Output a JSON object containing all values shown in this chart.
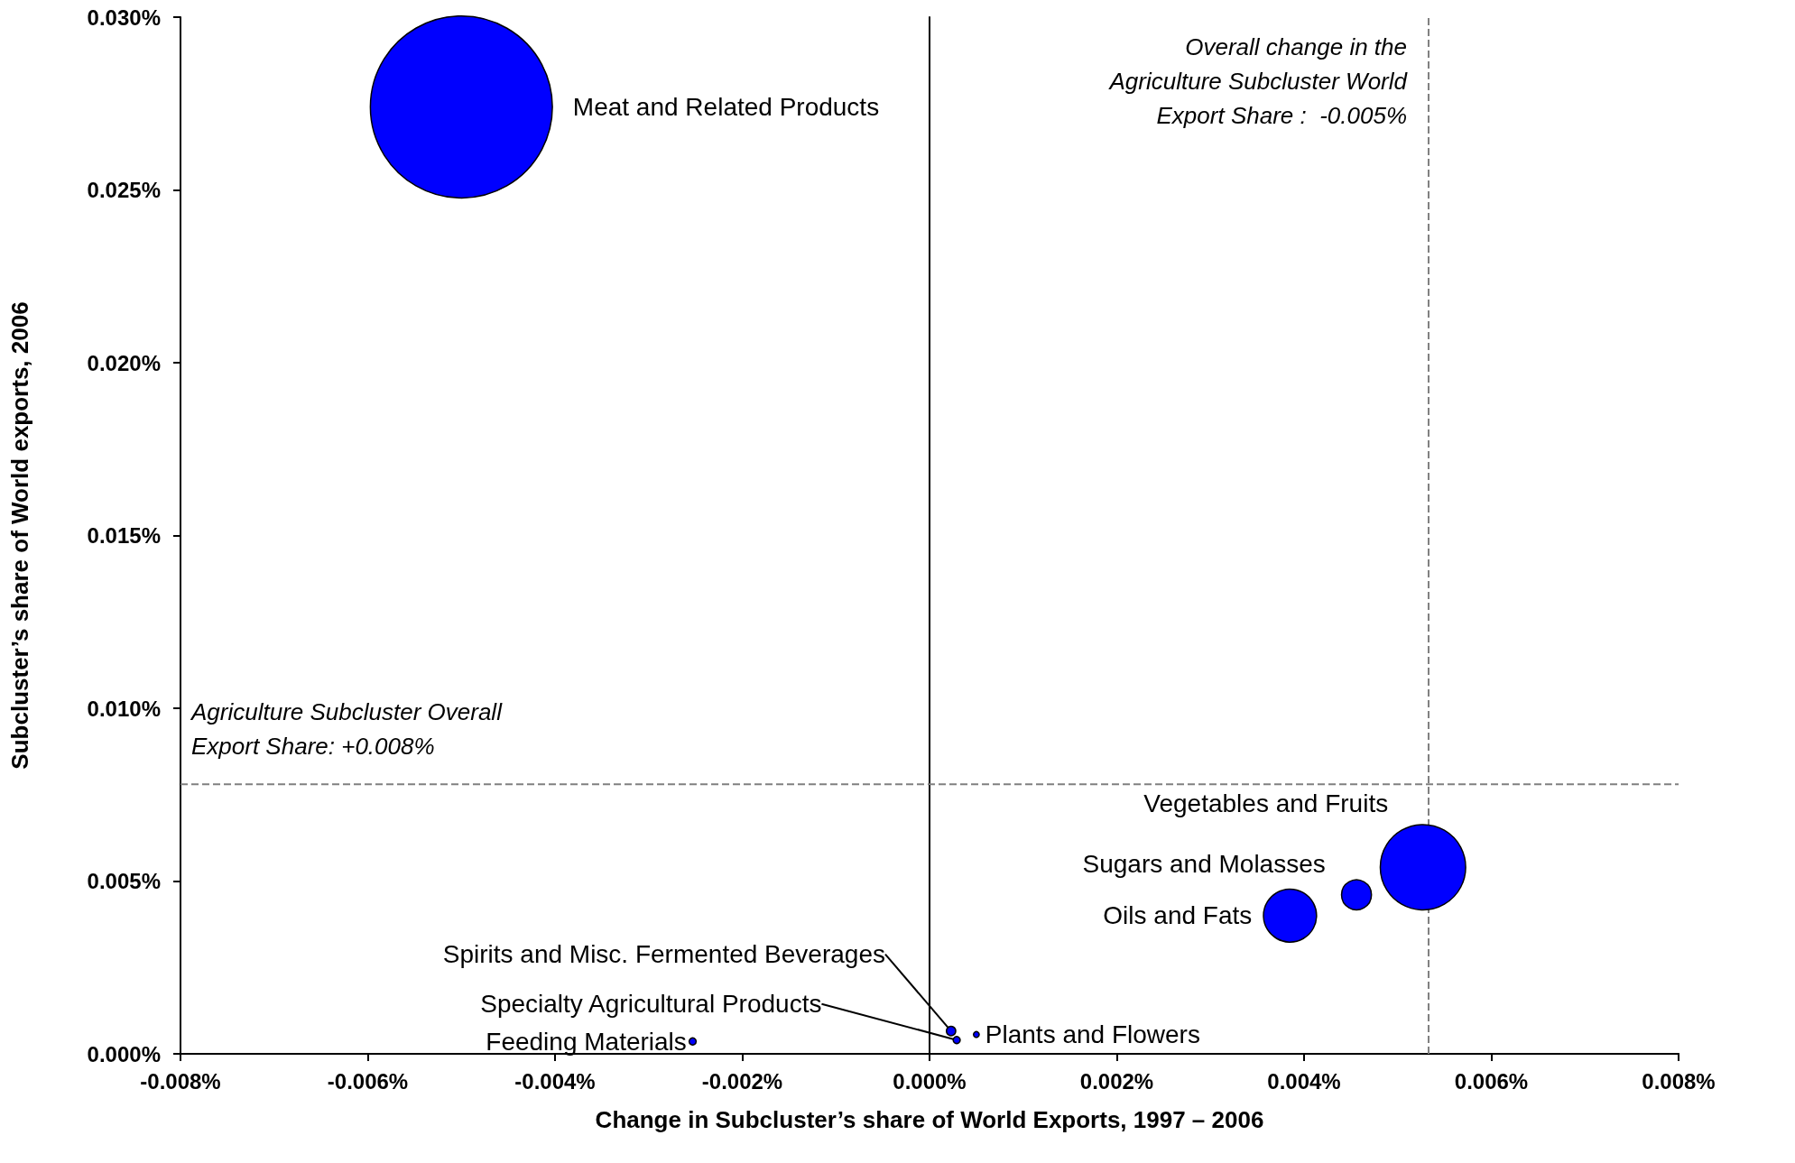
{
  "chart_data": {
    "type": "bubble",
    "xlabel": "Change in Subcluster’s share of World Exports, 1997 – 2006",
    "ylabel": "Subcluster’s share of World exports, 2006",
    "xlim": [
      -0.008,
      0.008
    ],
    "xticks": [
      {
        "value": -0.008,
        "label": "-0.008%"
      },
      {
        "value": -0.006,
        "label": "-0.006%"
      },
      {
        "value": -0.004,
        "label": "-0.004%"
      },
      {
        "value": -0.002,
        "label": "-0.002%"
      },
      {
        "value": 0,
        "label": "0.000%"
      },
      {
        "value": 0.002,
        "label": "0.002%"
      },
      {
        "value": 0.004,
        "label": "0.004%"
      },
      {
        "value": 0.006,
        "label": "0.006%"
      },
      {
        "value": 0.008,
        "label": "0.008%"
      }
    ],
    "ylim": [
      0,
      0.03
    ],
    "yticks": [
      {
        "value": 0,
        "label": "0.000%"
      },
      {
        "value": 0.005,
        "label": "0.005%"
      },
      {
        "value": 0.01,
        "label": "0.010%"
      },
      {
        "value": 0.015,
        "label": "0.015%"
      },
      {
        "value": 0.02,
        "label": "0.020%"
      },
      {
        "value": 0.025,
        "label": "0.025%"
      },
      {
        "value": 0.03,
        "label": "0.030%"
      }
    ],
    "grid": false,
    "legend": false,
    "series": [
      {
        "name": "Meat and Related Products",
        "color": "#0000ff",
        "x": [
          -0.005
        ],
        "values": [
          0.0274
        ],
        "sizes": [
          1
        ]
      },
      {
        "name": "Vegetables and Fruits",
        "color": "#0000ff",
        "x": [
          0.00527
        ],
        "values": [
          0.0054
        ],
        "sizes": [
          0.22
        ]
      },
      {
        "name": "Sugars and Molasses",
        "color": "#0000ff",
        "x": [
          0.00456
        ],
        "values": [
          0.0046
        ],
        "sizes": [
          0.027
        ]
      },
      {
        "name": "Oils and Fats",
        "color": "#0000ff",
        "x": [
          0.00385
        ],
        "values": [
          0.004
        ],
        "sizes": [
          0.085
        ]
      },
      {
        "name": "Spirits and Misc. Fermented Beverages",
        "color": "#0000ff",
        "x": [
          0.00023
        ],
        "values": [
          0.00066
        ],
        "sizes": [
          0.0026
        ]
      },
      {
        "name": "Specialty Agricultural Products",
        "color": "#0000ff",
        "x": [
          0.00029
        ],
        "values": [
          0.0004
        ],
        "sizes": [
          0.0015
        ]
      },
      {
        "name": "Feeding Materials",
        "color": "#0000ff",
        "x": [
          -0.00253
        ],
        "values": [
          0.00036
        ],
        "sizes": [
          0.0015
        ]
      },
      {
        "name": "Plants and Flowers",
        "color": "#0000ff",
        "x": [
          0.0005
        ],
        "values": [
          0.00056
        ],
        "sizes": [
          0.001
        ]
      }
    ],
    "ref_lines": [
      {
        "axis": "x",
        "value": 0,
        "color": "#000000",
        "line_style": "solid"
      },
      {
        "axis": "x",
        "value": 0.00533,
        "color": "#808080",
        "line_style": "dashed"
      },
      {
        "axis": "y",
        "value": 0.0078,
        "color": "#808080",
        "line_style": "dashed"
      }
    ],
    "annotations": [
      "Overall change in the\nAgriculture Subcluster World\nExport Share :  -0.005%",
      "Agriculture Subcluster Overall\nExport Share: +0.008%"
    ]
  }
}
